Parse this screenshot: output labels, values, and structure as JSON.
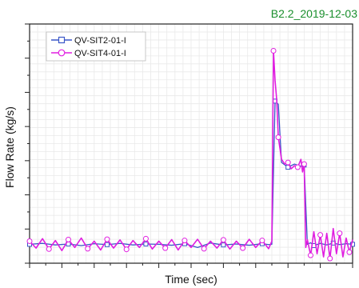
{
  "chart_data": {
    "type": "line",
    "title": "B2.2_2019-12-03",
    "title_color": "#1a8f2d",
    "xlabel": "Time (sec)",
    "ylabel": "Flow Rate (kg/s)",
    "grid": true,
    "grid_color": "#e9e9e9",
    "legend_position": "top-left",
    "series": [
      {
        "name": "QV-SIT2-01-I",
        "color": "#3a57c7",
        "marker": "square",
        "x": [
          0,
          4,
          8,
          12,
          16,
          20,
          24,
          28,
          32,
          36,
          40,
          44,
          48,
          52,
          56,
          60,
          64,
          68,
          72,
          74,
          75,
          76,
          77,
          78,
          80,
          82,
          84,
          85,
          86,
          87,
          88,
          90,
          92,
          94,
          96,
          98,
          100
        ],
        "y": [
          0,
          0.03,
          -0.02,
          0.01,
          -0.04,
          0.02,
          -0.01,
          0.03,
          -0.02,
          0.01,
          0,
          -0.03,
          0.02,
          -0.1,
          0.04,
          -0.02,
          0.01,
          -0.03,
          0.02,
          -0.01,
          0,
          4.55,
          4.45,
          2.6,
          2.45,
          2.55,
          2.48,
          2.52,
          0,
          0.05,
          -0.04,
          0.03,
          -0.02,
          0.04,
          -0.01,
          0.02,
          0
        ]
      },
      {
        "name": "QV-SIT4-01-I",
        "color": "#e01ee0",
        "marker": "circle",
        "x": [
          0,
          2,
          4,
          6,
          8,
          10,
          12,
          14,
          16,
          18,
          20,
          22,
          24,
          26,
          28,
          30,
          32,
          34,
          36,
          38,
          40,
          42,
          44,
          46,
          48,
          50,
          52,
          54,
          56,
          58,
          60,
          62,
          64,
          66,
          68,
          70,
          72,
          74,
          75,
          75.5,
          76,
          76.5,
          77,
          78,
          79,
          80,
          81,
          82,
          83,
          84,
          84.5,
          85,
          85.5,
          86,
          87,
          88,
          89,
          90,
          91,
          92,
          93,
          94,
          95,
          96,
          97,
          98,
          99,
          100
        ],
        "y": [
          0.1,
          -0.12,
          0.18,
          -0.15,
          0.12,
          -0.2,
          0.15,
          -0.1,
          0.2,
          -0.14,
          0.1,
          -0.18,
          0.16,
          -0.12,
          0.14,
          -0.16,
          0.12,
          -0.1,
          0.18,
          -0.15,
          0.1,
          -0.12,
          0.15,
          -0.18,
          0.12,
          -0.1,
          0.16,
          -0.14,
          0.1,
          -0.12,
          0.14,
          -0.15,
          0.1,
          -0.12,
          0.16,
          -0.1,
          0.12,
          -0.14,
          0.1,
          6.15,
          5.2,
          4.6,
          3.4,
          2.7,
          2.55,
          2.6,
          2.4,
          2.5,
          2.45,
          2.7,
          2.3,
          2.55,
          -0.1,
          0.15,
          -0.35,
          0.4,
          -0.3,
          0.3,
          -0.4,
          0.35,
          -0.45,
          0.5,
          -0.3,
          0.35,
          -0.4,
          0.2,
          -0.25,
          0.15
        ]
      }
    ],
    "xlim": [
      0,
      100
    ],
    "ylim": [
      -0.6,
      7.0
    ]
  }
}
